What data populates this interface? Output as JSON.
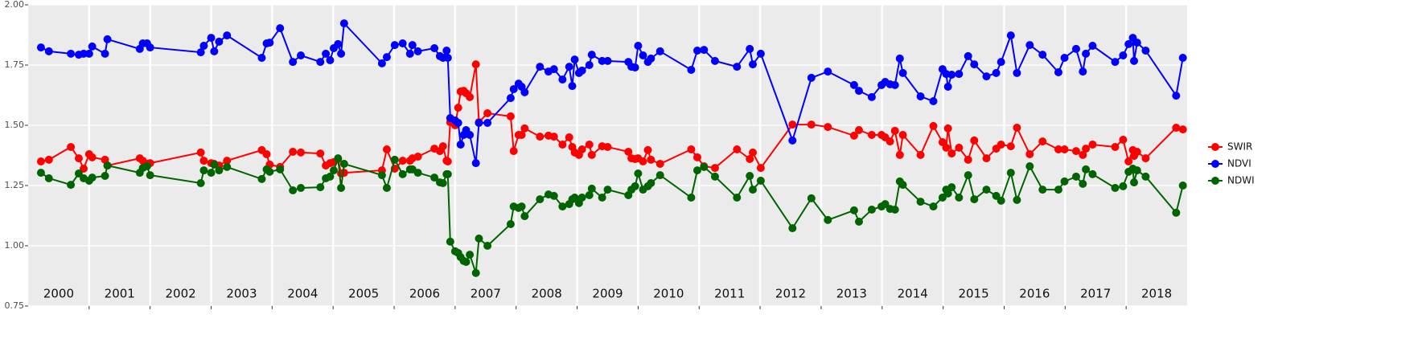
{
  "chart_data": {
    "type": "line",
    "x": [
      2000.21,
      2000.34,
      2000.7,
      2000.83,
      2000.91,
      2001.0,
      2001.05,
      2001.26,
      2001.3,
      2001.83,
      2001.88,
      2001.95,
      2002.0,
      2002.83,
      2002.88,
      2003.0,
      2003.05,
      2003.13,
      2003.26,
      2003.83,
      2003.91,
      2003.96,
      2004.13,
      2004.34,
      2004.47,
      2004.79,
      2004.88,
      2004.95,
      2005.01,
      2005.08,
      2005.13,
      2005.18,
      2005.8,
      2005.88,
      2006.01,
      2006.14,
      2006.26,
      2006.3,
      2006.39,
      2006.66,
      2006.75,
      2006.8,
      2006.86,
      2006.88,
      2006.92,
      2007.0,
      2007.05,
      2007.09,
      2007.14,
      2007.18,
      2007.24,
      2007.34,
      2007.39,
      2007.53,
      2007.91,
      2007.96,
      2008.04,
      2008.09,
      2008.14,
      2008.39,
      2008.53,
      2008.62,
      2008.76,
      2008.87,
      2008.92,
      2008.96,
      2009.03,
      2009.08,
      2009.2,
      2009.24,
      2009.41,
      2009.5,
      2009.84,
      2009.89,
      2009.95,
      2010.0,
      2010.08,
      2010.16,
      2010.21,
      2010.36,
      2010.87,
      2010.97,
      2011.08,
      2011.26,
      2011.62,
      2011.83,
      2011.88,
      2012.01,
      2012.53,
      2012.84,
      2013.11,
      2013.54,
      2013.62,
      2013.83,
      2013.99,
      2014.05,
      2014.13,
      2014.21,
      2014.29,
      2014.34,
      2014.63,
      2014.84,
      2014.99,
      2015.05,
      2015.08,
      2015.14,
      2015.26,
      2015.41,
      2015.51,
      2015.71,
      2015.87,
      2015.95,
      2016.11,
      2016.21,
      2016.42,
      2016.63,
      2016.89,
      2016.99,
      2017.18,
      2017.29,
      2017.34,
      2017.45,
      2017.82,
      2017.95,
      2018.04,
      2018.11,
      2018.13,
      2018.18,
      2018.32,
      2018.82,
      2018.93
    ],
    "series": [
      {
        "name": "SWIR",
        "color": "#ff0000",
        "values": [
          1.35,
          1.357,
          1.41,
          1.363,
          1.32,
          1.38,
          1.367,
          1.357,
          1.333,
          1.363,
          1.353,
          1.34,
          1.343,
          1.387,
          1.353,
          1.343,
          1.34,
          1.333,
          1.353,
          1.397,
          1.38,
          1.337,
          1.327,
          1.39,
          1.387,
          1.383,
          1.333,
          1.343,
          1.347,
          1.36,
          1.3,
          1.303,
          1.313,
          1.4,
          1.32,
          1.353,
          1.353,
          1.363,
          1.37,
          1.403,
          1.393,
          1.413,
          1.353,
          1.35,
          1.513,
          1.5,
          1.573,
          1.64,
          1.643,
          1.633,
          1.617,
          1.753,
          1.513,
          1.55,
          1.537,
          1.393,
          1.46,
          1.46,
          1.487,
          1.453,
          1.457,
          1.453,
          1.42,
          1.45,
          1.41,
          1.387,
          1.377,
          1.4,
          1.42,
          1.377,
          1.413,
          1.41,
          1.39,
          1.363,
          1.36,
          1.363,
          1.35,
          1.397,
          1.357,
          1.34,
          1.4,
          1.367,
          1.33,
          1.323,
          1.4,
          1.36,
          1.387,
          1.323,
          1.503,
          1.503,
          1.493,
          1.457,
          1.48,
          1.46,
          1.46,
          1.45,
          1.433,
          1.477,
          1.377,
          1.46,
          1.377,
          1.497,
          1.43,
          1.407,
          1.487,
          1.383,
          1.407,
          1.357,
          1.437,
          1.363,
          1.403,
          1.42,
          1.413,
          1.49,
          1.38,
          1.433,
          1.4,
          1.4,
          1.393,
          1.377,
          1.403,
          1.42,
          1.41,
          1.44,
          1.35,
          1.397,
          1.373,
          1.39,
          1.363,
          1.49,
          1.483
        ]
      },
      {
        "name": "NDVI",
        "color": "#0000ff",
        "values": [
          1.823,
          1.807,
          1.797,
          1.793,
          1.797,
          1.797,
          1.827,
          1.797,
          1.857,
          1.817,
          1.84,
          1.84,
          1.823,
          1.803,
          1.83,
          1.863,
          1.807,
          1.847,
          1.873,
          1.78,
          1.84,
          1.843,
          1.903,
          1.763,
          1.79,
          1.763,
          1.797,
          1.77,
          1.82,
          1.837,
          1.797,
          1.923,
          1.757,
          1.783,
          1.833,
          1.84,
          1.797,
          1.833,
          1.807,
          1.82,
          1.787,
          1.78,
          1.81,
          1.78,
          1.53,
          1.52,
          1.51,
          1.42,
          1.46,
          1.48,
          1.46,
          1.343,
          1.51,
          1.51,
          1.613,
          1.65,
          1.673,
          1.66,
          1.637,
          1.743,
          1.723,
          1.733,
          1.69,
          1.743,
          1.663,
          1.773,
          1.717,
          1.727,
          1.75,
          1.793,
          1.767,
          1.767,
          1.763,
          1.743,
          1.74,
          1.83,
          1.79,
          1.763,
          1.777,
          1.807,
          1.73,
          1.81,
          1.813,
          1.767,
          1.743,
          1.817,
          1.753,
          1.797,
          1.437,
          1.697,
          1.723,
          1.667,
          1.643,
          1.617,
          1.667,
          1.68,
          1.67,
          1.667,
          1.777,
          1.717,
          1.62,
          1.6,
          1.733,
          1.713,
          1.66,
          1.71,
          1.713,
          1.787,
          1.753,
          1.703,
          1.717,
          1.763,
          1.873,
          1.717,
          1.833,
          1.793,
          1.72,
          1.78,
          1.817,
          1.723,
          1.797,
          1.83,
          1.763,
          1.79,
          1.837,
          1.863,
          1.767,
          1.843,
          1.81,
          1.623,
          1.78
        ]
      },
      {
        "name": "NDWI",
        "color": "#006400",
        "values": [
          1.303,
          1.28,
          1.253,
          1.3,
          1.28,
          1.27,
          1.283,
          1.29,
          1.333,
          1.303,
          1.323,
          1.33,
          1.293,
          1.26,
          1.313,
          1.303,
          1.337,
          1.313,
          1.327,
          1.277,
          1.317,
          1.307,
          1.317,
          1.23,
          1.24,
          1.243,
          1.28,
          1.287,
          1.313,
          1.363,
          1.24,
          1.34,
          1.293,
          1.24,
          1.357,
          1.297,
          1.317,
          1.317,
          1.303,
          1.283,
          1.263,
          1.26,
          1.297,
          1.297,
          1.017,
          0.977,
          0.97,
          0.953,
          0.937,
          0.933,
          0.963,
          0.887,
          1.03,
          1.0,
          1.09,
          1.163,
          1.157,
          1.163,
          1.123,
          1.193,
          1.213,
          1.207,
          1.163,
          1.173,
          1.193,
          1.2,
          1.177,
          1.2,
          1.21,
          1.237,
          1.2,
          1.233,
          1.21,
          1.233,
          1.247,
          1.3,
          1.233,
          1.247,
          1.26,
          1.293,
          1.2,
          1.313,
          1.327,
          1.287,
          1.2,
          1.29,
          1.233,
          1.27,
          1.073,
          1.197,
          1.107,
          1.147,
          1.1,
          1.15,
          1.163,
          1.173,
          1.153,
          1.15,
          1.267,
          1.253,
          1.183,
          1.163,
          1.2,
          1.233,
          1.217,
          1.243,
          1.2,
          1.293,
          1.193,
          1.233,
          1.207,
          1.187,
          1.303,
          1.19,
          1.33,
          1.233,
          1.233,
          1.267,
          1.287,
          1.257,
          1.317,
          1.297,
          1.24,
          1.247,
          1.307,
          1.32,
          1.263,
          1.313,
          1.287,
          1.137,
          1.25
        ]
      }
    ],
    "xlim": [
      2000,
      2019
    ],
    "xticks": [
      2001,
      2002,
      2003,
      2004,
      2005,
      2006,
      2007,
      2008,
      2009,
      2010,
      2011,
      2012,
      2013,
      2014,
      2015,
      2016,
      2017,
      2018
    ],
    "year_labels": [
      "2000",
      "2001",
      "2002",
      "2003",
      "2004",
      "2005",
      "2006",
      "2007",
      "2008",
      "2009",
      "2010",
      "2011",
      "2012",
      "2013",
      "2014",
      "2015",
      "2016",
      "2017",
      "2018"
    ],
    "ylim": [
      0.75,
      2
    ],
    "yticks": [
      {
        "value": 0.75,
        "label": "0.75"
      },
      {
        "value": 1,
        "label": "1.00"
      },
      {
        "value": 1.25,
        "label": "1.25"
      },
      {
        "value": 1.5,
        "label": "1.50"
      },
      {
        "value": 1.75,
        "label": "1.75"
      },
      {
        "value": 2,
        "label": "2.00"
      }
    ],
    "grid": true,
    "legend": "right"
  }
}
